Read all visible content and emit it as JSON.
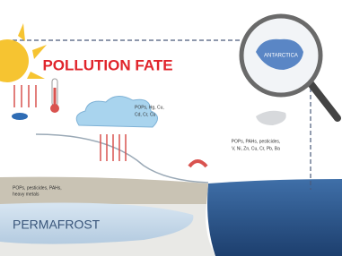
{
  "title": "POLLUTION FATE",
  "magnifier_label": "ANTARCTICA",
  "cloud_label": [
    "POPs, Hg, Cu,",
    "Cd, Cr, Cu"
  ],
  "ocean_label": [
    "POPs, PAHs, pesticides,",
    "V, Ni, Zn, Cu, Cr, Pb, Ba"
  ],
  "soil_label": [
    "POPs, pesticides, PAHs,",
    "heavy metals"
  ],
  "permafrost_label": "PERMAFROST"
}
